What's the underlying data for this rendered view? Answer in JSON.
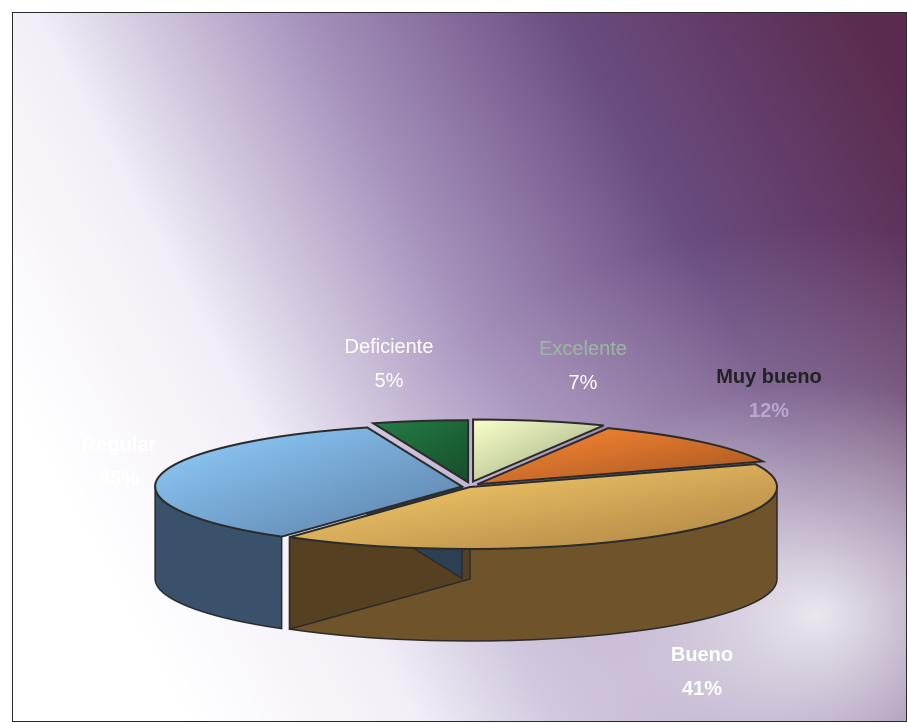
{
  "chart_data": {
    "type": "pie",
    "variant": "3d-exploded",
    "title": "",
    "categories": [
      "Excelente",
      "Muy bueno",
      "Bueno",
      "Regular",
      "Deficiente"
    ],
    "values": [
      7,
      12,
      41,
      35,
      5
    ],
    "labels": [
      "7%",
      "12%",
      "41%",
      "35%",
      "5%"
    ],
    "colors": [
      "#d9efb0",
      "#e8782e",
      "#f5b860",
      "#7fb4ec",
      "#1f6e3d"
    ],
    "legend": "none",
    "data_labels": "category-and-percent"
  }
}
